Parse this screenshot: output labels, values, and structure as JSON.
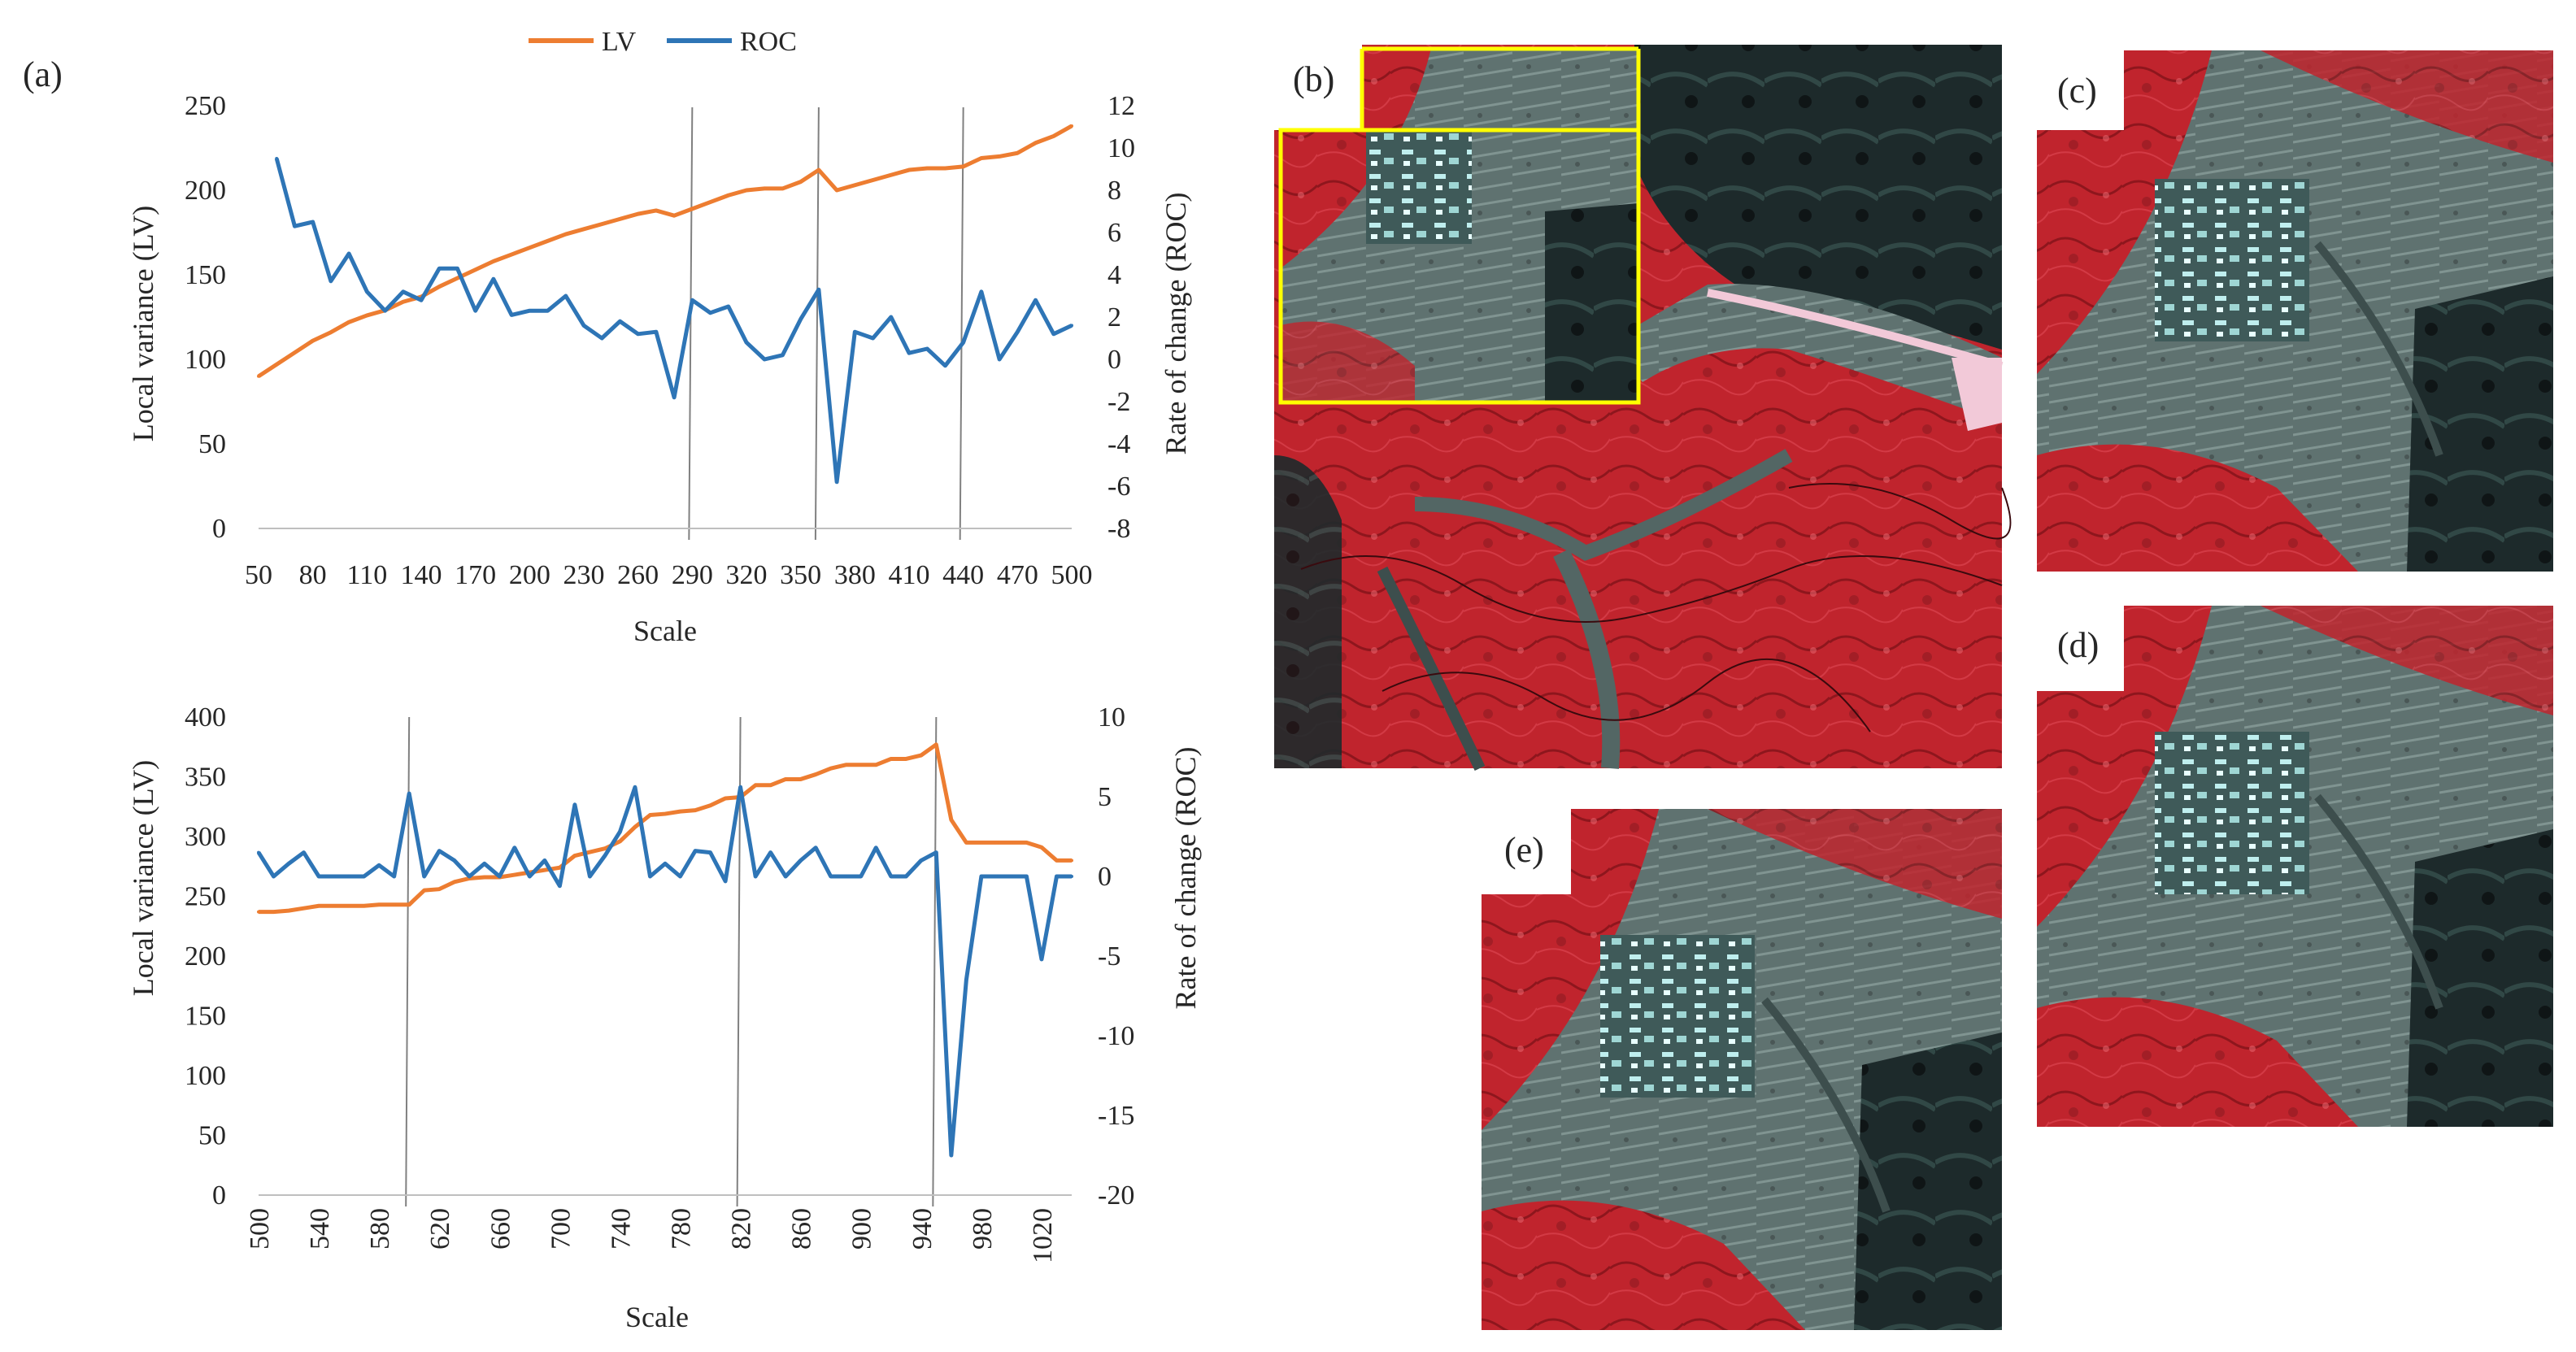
{
  "panel_labels": {
    "a": "(a)",
    "b": "(b)",
    "c": "(c)",
    "d": "(d)",
    "e": "(e)"
  },
  "legend": {
    "lv": "LV",
    "roc": "ROC"
  },
  "colors": {
    "lv": "#ED7D31",
    "roc": "#2E75B6",
    "grid": "#808080",
    "axis": "#BFBFBF",
    "highlight": "#FFFF00"
  },
  "chart_data": [
    {
      "type": "line",
      "title": "",
      "xlabel": "Scale",
      "ylabel": "Local variance (LV)",
      "y2label": "Rate of change (ROC)",
      "xlim": [
        50,
        500
      ],
      "ylim": [
        0,
        250
      ],
      "y2lim": [
        -8,
        12
      ],
      "x_ticks": [
        50,
        80,
        110,
        140,
        170,
        200,
        230,
        260,
        290,
        320,
        350,
        380,
        410,
        440,
        470,
        500
      ],
      "y_ticks": [
        0,
        50,
        100,
        150,
        200,
        250
      ],
      "y2_ticks": [
        -8,
        -6,
        -4,
        -2,
        0,
        2,
        4,
        6,
        8,
        10,
        12
      ],
      "vlines": [
        290,
        360,
        440
      ],
      "series": [
        {
          "name": "LV",
          "axis": "left",
          "x": [
            50,
            60,
            70,
            80,
            90,
            100,
            110,
            120,
            130,
            140,
            150,
            160,
            170,
            180,
            190,
            200,
            210,
            220,
            230,
            240,
            250,
            260,
            270,
            280,
            290,
            300,
            310,
            320,
            330,
            340,
            350,
            360,
            370,
            380,
            390,
            400,
            410,
            420,
            430,
            440,
            450,
            460,
            470,
            480,
            490,
            500
          ],
          "values": [
            90,
            97,
            104,
            111,
            116,
            122,
            126,
            129,
            134,
            137,
            143,
            148,
            153,
            158,
            162,
            166,
            170,
            174,
            177,
            180,
            183,
            186,
            188,
            185,
            189,
            193,
            197,
            200,
            201,
            201,
            205,
            212,
            200,
            203,
            206,
            209,
            212,
            213,
            213,
            214,
            219,
            220,
            222,
            228,
            232,
            238
          ]
        },
        {
          "name": "ROC",
          "axis": "right",
          "x": [
            60,
            70,
            80,
            90,
            100,
            110,
            120,
            130,
            140,
            150,
            160,
            170,
            180,
            190,
            200,
            210,
            220,
            230,
            240,
            250,
            260,
            270,
            280,
            290,
            300,
            310,
            320,
            330,
            340,
            350,
            360,
            370,
            380,
            390,
            400,
            410,
            420,
            430,
            440,
            450,
            460,
            470,
            480,
            490,
            500
          ],
          "values": [
            9.5,
            6.3,
            6.5,
            3.7,
            5.0,
            3.2,
            2.3,
            3.2,
            2.8,
            4.3,
            4.3,
            2.3,
            3.8,
            2.1,
            2.3,
            2.3,
            3.0,
            1.6,
            1.0,
            1.8,
            1.2,
            1.3,
            -1.8,
            2.8,
            2.2,
            2.5,
            0.8,
            0.0,
            0.2,
            1.9,
            3.3,
            -5.8,
            1.3,
            1.0,
            2.0,
            0.3,
            0.5,
            -0.3,
            0.8,
            3.2,
            0.0,
            1.3,
            2.8,
            1.2,
            1.6
          ]
        }
      ]
    },
    {
      "type": "line",
      "title": "",
      "xlabel": "Scale",
      "ylabel": "Local variance (LV)",
      "y2label": "Rate of change (ROC)",
      "xlim": [
        500,
        1040
      ],
      "ylim": [
        0,
        400
      ],
      "y2lim": [
        -20,
        10
      ],
      "x_ticks": [
        500,
        540,
        580,
        620,
        660,
        700,
        740,
        780,
        820,
        860,
        900,
        940,
        980,
        1020
      ],
      "y_ticks": [
        0,
        50,
        100,
        150,
        200,
        250,
        300,
        350,
        400
      ],
      "y2_ticks": [
        -20,
        -15,
        -10,
        -5,
        0,
        5,
        10
      ],
      "vlines": [
        600,
        820,
        950
      ],
      "series": [
        {
          "name": "LV",
          "axis": "left",
          "x": [
            500,
            510,
            520,
            530,
            540,
            550,
            560,
            570,
            580,
            590,
            600,
            610,
            620,
            630,
            640,
            650,
            660,
            670,
            680,
            690,
            700,
            710,
            720,
            730,
            740,
            750,
            760,
            770,
            780,
            790,
            800,
            810,
            820,
            830,
            840,
            850,
            860,
            870,
            880,
            890,
            900,
            910,
            920,
            930,
            940,
            950,
            960,
            970,
            980,
            990,
            1000,
            1010,
            1020,
            1030,
            1040
          ],
          "values": [
            237,
            237,
            238,
            240,
            242,
            242,
            242,
            242,
            243,
            243,
            243,
            255,
            256,
            262,
            265,
            266,
            266,
            268,
            270,
            272,
            274,
            284,
            287,
            290,
            296,
            308,
            318,
            319,
            321,
            322,
            326,
            332,
            333,
            343,
            343,
            348,
            348,
            352,
            357,
            360,
            360,
            360,
            365,
            365,
            368,
            377,
            314,
            295,
            295,
            295,
            295,
            295,
            291,
            280,
            280
          ]
        },
        {
          "name": "ROC",
          "axis": "right",
          "x": [
            500,
            510,
            520,
            530,
            540,
            550,
            560,
            570,
            580,
            590,
            600,
            610,
            620,
            630,
            640,
            650,
            660,
            670,
            680,
            690,
            700,
            710,
            720,
            730,
            740,
            750,
            760,
            770,
            780,
            790,
            800,
            810,
            820,
            830,
            840,
            850,
            860,
            870,
            880,
            890,
            900,
            910,
            920,
            930,
            940,
            950,
            960,
            970,
            980,
            990,
            1000,
            1010,
            1020,
            1030,
            1040
          ],
          "values": [
            1.5,
            0.0,
            0.8,
            1.5,
            0.0,
            0.0,
            0.0,
            0.0,
            0.7,
            0.0,
            5.2,
            0.0,
            1.6,
            1.0,
            0.0,
            0.8,
            0.0,
            1.8,
            0.0,
            1.0,
            -0.6,
            4.5,
            0.0,
            1.3,
            2.8,
            5.6,
            0.0,
            0.8,
            0.0,
            1.6,
            1.5,
            -0.3,
            5.6,
            0.0,
            1.5,
            0.0,
            1.0,
            1.8,
            0.0,
            0.0,
            0.0,
            1.8,
            0.0,
            0.0,
            1.0,
            1.5,
            -17.5,
            -6.5,
            0.0,
            0.0,
            0.0,
            0.0,
            -5.2,
            0.0,
            0.0
          ]
        }
      ]
    }
  ]
}
